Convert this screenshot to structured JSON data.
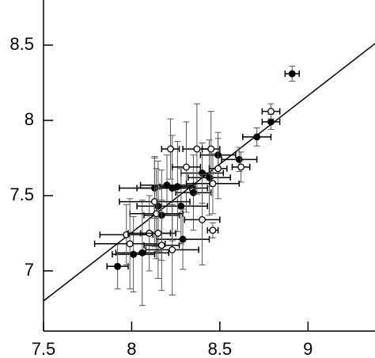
{
  "chart_data": {
    "type": "scatter",
    "xlim": [
      7.5,
      9.38
    ],
    "ylim": [
      6.6,
      8.8
    ],
    "xticks": [
      7.5,
      8,
      8.5,
      9
    ],
    "yticks": [
      7,
      7.5,
      8,
      8.5
    ],
    "color": "#000000",
    "series": [
      {
        "marker": "filled",
        "x": [
          8.91,
          8.79,
          8.71,
          8.61,
          8.49,
          8.4,
          8.35,
          8.2,
          8.15,
          8.28,
          8.17,
          8.29,
          8.06,
          8.01,
          7.92,
          8.26,
          8.23,
          8.44,
          8.13
        ],
        "y": [
          8.31,
          7.99,
          7.89,
          7.74,
          7.77,
          7.65,
          7.52,
          7.57,
          7.43,
          7.43,
          7.37,
          7.21,
          7.12,
          7.11,
          7.03,
          7.56,
          7.55,
          7.62,
          7.55
        ],
        "xerr": [
          0.04,
          0.05,
          0.08,
          0.1,
          0.1,
          0.12,
          0.1,
          0.15,
          0.12,
          0.15,
          0.1,
          0.15,
          0.15,
          0.12,
          0.06,
          0.1,
          0.2,
          0.12,
          0.2
        ],
        "yerr": [
          0.05,
          0.05,
          0.06,
          0.08,
          0.15,
          0.2,
          0.25,
          0.2,
          0.3,
          0.25,
          0.3,
          0.2,
          0.35,
          0.25,
          0.15,
          0.3,
          0.35,
          0.25,
          0.2
        ]
      },
      {
        "marker": "open",
        "x": [
          8.79,
          8.22,
          8.37,
          8.45,
          8.31,
          8.49,
          8.62,
          8.46,
          8.13,
          8.14,
          7.97,
          7.99,
          8.1,
          8.15,
          8.46,
          8.4,
          8.23,
          8.17
        ],
        "y": [
          8.06,
          7.81,
          7.81,
          7.81,
          7.69,
          7.68,
          7.69,
          7.58,
          7.46,
          7.38,
          7.24,
          7.18,
          7.25,
          7.25,
          7.27,
          7.34,
          7.14,
          7.17
        ],
        "xerr": [
          0.05,
          0.05,
          0.08,
          0.05,
          0.08,
          0.05,
          0.05,
          0.15,
          0.2,
          0.15,
          0.15,
          0.2,
          0.12,
          0.1,
          0.03,
          0.1,
          0.15,
          0.1
        ],
        "yerr": [
          0.05,
          0.2,
          0.3,
          0.25,
          0.3,
          0.2,
          0.1,
          0.2,
          0.3,
          0.3,
          0.2,
          0.3,
          0.25,
          0.3,
          0.05,
          0.3,
          0.3,
          0.3
        ]
      }
    ],
    "lines": [
      {
        "x": [
          7.5,
          9.38
        ],
        "y": [
          6.8,
          8.51
        ]
      }
    ]
  }
}
